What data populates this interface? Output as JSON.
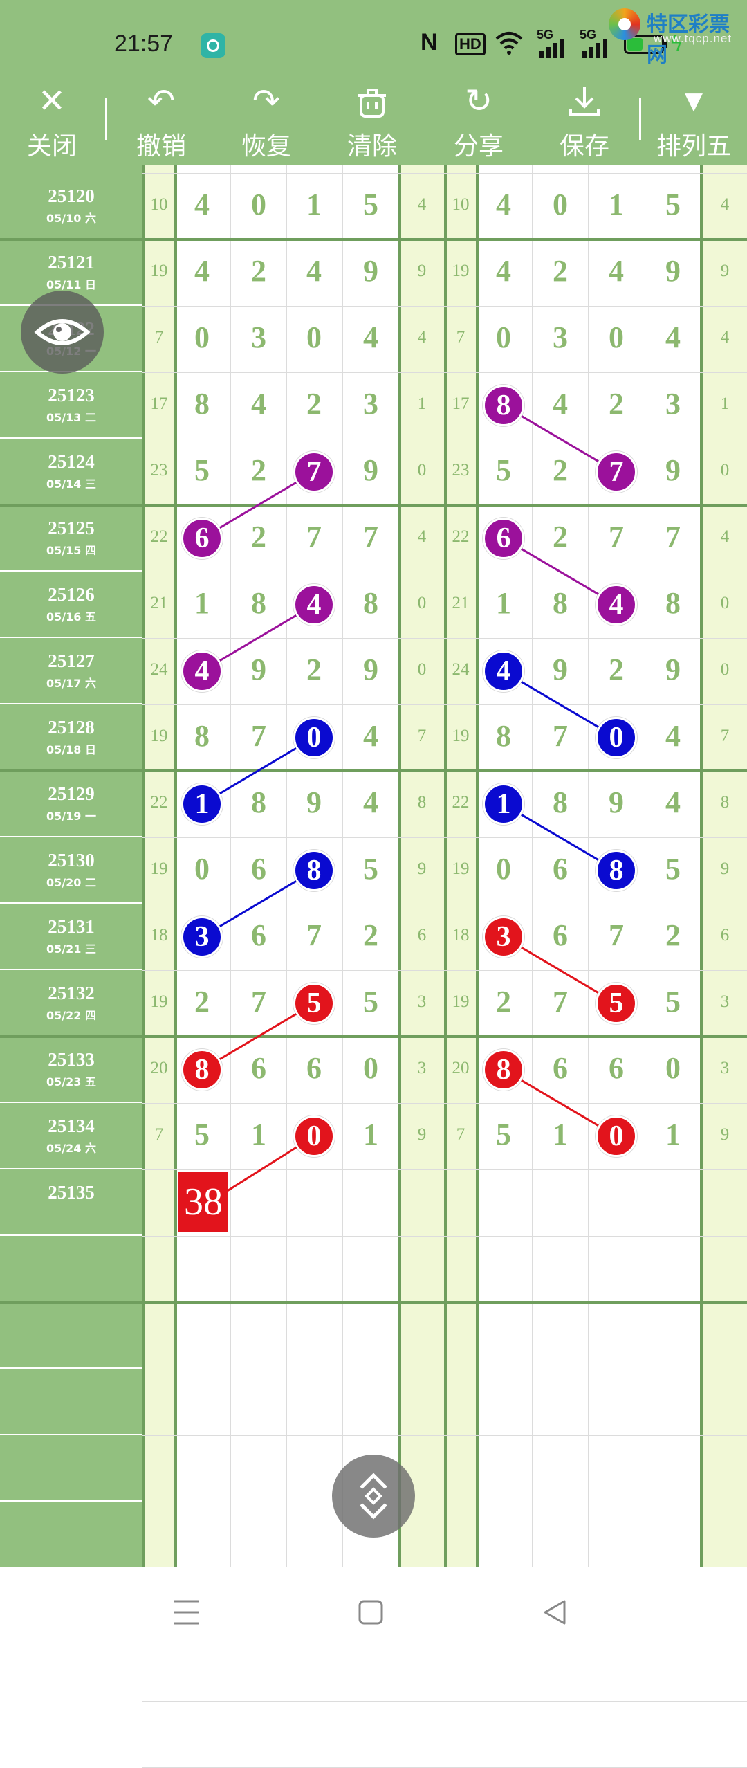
{
  "status_bar": {
    "time": "21:57",
    "icons": [
      "nfc-icon",
      "hd-icon",
      "wifi-icon",
      "signal-5g-icon",
      "signal-5g-icon",
      "battery-icon",
      "charging-icon"
    ],
    "hd_label": "HD",
    "net1_label": "5G",
    "net2_label": "5G"
  },
  "watermark": {
    "text": "特区彩票网",
    "url": "www.tqcp.net"
  },
  "toolbar": {
    "close": "关闭",
    "undo": "撤销",
    "redo": "恢复",
    "clear": "清除",
    "share": "分享",
    "save": "保存",
    "sort": "排列五"
  },
  "rows": [
    {
      "issue": "25120",
      "date": "05/10 六",
      "sum": "10",
      "digits": [
        "4",
        "0",
        "1",
        "5"
      ],
      "tail": "4"
    },
    {
      "issue": "25121",
      "date": "05/11 日",
      "sum": "19",
      "digits": [
        "4",
        "2",
        "4",
        "9"
      ],
      "tail": "9"
    },
    {
      "issue": "25122",
      "date": "05/12 一",
      "sum": "7",
      "digits": [
        "0",
        "3",
        "0",
        "4"
      ],
      "tail": "4"
    },
    {
      "issue": "25123",
      "date": "05/13 二",
      "sum": "17",
      "digits": [
        "8",
        "4",
        "2",
        "3"
      ],
      "tail": "1"
    },
    {
      "issue": "25124",
      "date": "05/14 三",
      "sum": "23",
      "digits": [
        "5",
        "2",
        "7",
        "9"
      ],
      "tail": "0"
    },
    {
      "issue": "25125",
      "date": "05/15 四",
      "sum": "22",
      "digits": [
        "6",
        "2",
        "7",
        "7"
      ],
      "tail": "4"
    },
    {
      "issue": "25126",
      "date": "05/16 五",
      "sum": "21",
      "digits": [
        "1",
        "8",
        "4",
        "8"
      ],
      "tail": "0"
    },
    {
      "issue": "25127",
      "date": "05/17 六",
      "sum": "24",
      "digits": [
        "4",
        "9",
        "2",
        "9"
      ],
      "tail": "0"
    },
    {
      "issue": "25128",
      "date": "05/18 日",
      "sum": "19",
      "digits": [
        "8",
        "7",
        "0",
        "4"
      ],
      "tail": "7"
    },
    {
      "issue": "25129",
      "date": "05/19 一",
      "sum": "22",
      "digits": [
        "1",
        "8",
        "9",
        "4"
      ],
      "tail": "8"
    },
    {
      "issue": "25130",
      "date": "05/20 二",
      "sum": "19",
      "digits": [
        "0",
        "6",
        "8",
        "5"
      ],
      "tail": "9"
    },
    {
      "issue": "25131",
      "date": "05/21 三",
      "sum": "18",
      "digits": [
        "3",
        "6",
        "7",
        "2"
      ],
      "tail": "6"
    },
    {
      "issue": "25132",
      "date": "05/22 四",
      "sum": "19",
      "digits": [
        "2",
        "7",
        "5",
        "5"
      ],
      "tail": "3"
    },
    {
      "issue": "25133",
      "date": "05/23 五",
      "sum": "20",
      "digits": [
        "8",
        "6",
        "6",
        "0"
      ],
      "tail": "3"
    },
    {
      "issue": "25134",
      "date": "05/24 六",
      "sum": "7",
      "digits": [
        "5",
        "1",
        "0",
        "1"
      ],
      "tail": "9"
    },
    {
      "issue": "25135",
      "date": "",
      "sum": "",
      "digits": [
        "",
        "",
        "",
        ""
      ],
      "tail": ""
    }
  ],
  "marks_left": [
    {
      "row": 4,
      "col": 2,
      "color": "#9b119b"
    },
    {
      "row": 5,
      "col": 0,
      "color": "#9b119b"
    },
    {
      "row": 6,
      "col": 2,
      "color": "#9b119b"
    },
    {
      "row": 7,
      "col": 0,
      "color": "#9b119b"
    },
    {
      "row": 8,
      "col": 2,
      "color": "#0a0ad0"
    },
    {
      "row": 9,
      "col": 0,
      "color": "#0a0ad0"
    },
    {
      "row": 10,
      "col": 2,
      "color": "#0a0ad0"
    },
    {
      "row": 11,
      "col": 0,
      "color": "#0a0ad0"
    },
    {
      "row": 12,
      "col": 2,
      "color": "#e2141c"
    },
    {
      "row": 13,
      "col": 0,
      "color": "#e2141c"
    },
    {
      "row": 14,
      "col": 2,
      "color": "#e2141c"
    }
  ],
  "marks_right": [
    {
      "row": 3,
      "col": 0,
      "color": "#9b119b"
    },
    {
      "row": 4,
      "col": 2,
      "color": "#9b119b"
    },
    {
      "row": 5,
      "col": 0,
      "color": "#9b119b"
    },
    {
      "row": 6,
      "col": 2,
      "color": "#9b119b"
    },
    {
      "row": 7,
      "col": 0,
      "color": "#0a0ad0"
    },
    {
      "row": 8,
      "col": 2,
      "color": "#0a0ad0"
    },
    {
      "row": 9,
      "col": 0,
      "color": "#0a0ad0"
    },
    {
      "row": 10,
      "col": 2,
      "color": "#0a0ad0"
    },
    {
      "row": 11,
      "col": 0,
      "color": "#e2141c"
    },
    {
      "row": 12,
      "col": 2,
      "color": "#e2141c"
    },
    {
      "row": 13,
      "col": 0,
      "color": "#e2141c"
    },
    {
      "row": 14,
      "col": 2,
      "color": "#e2141c"
    }
  ],
  "lines_left": [
    [
      4,
      2,
      5,
      0,
      "#9b119b"
    ],
    [
      6,
      2,
      7,
      0,
      "#9b119b"
    ],
    [
      8,
      2,
      9,
      0,
      "#0a0ad0"
    ],
    [
      10,
      2,
      11,
      0,
      "#0a0ad0"
    ],
    [
      12,
      2,
      13,
      0,
      "#e2141c"
    ],
    [
      14,
      2,
      15,
      0,
      "#e2141c"
    ]
  ],
  "lines_right": [
    [
      3,
      0,
      4,
      2,
      "#9b119b"
    ],
    [
      5,
      0,
      6,
      2,
      "#9b119b"
    ],
    [
      7,
      0,
      8,
      2,
      "#0a0ad0"
    ],
    [
      9,
      0,
      10,
      2,
      "#0a0ad0"
    ],
    [
      11,
      0,
      12,
      2,
      "#e2141c"
    ],
    [
      13,
      0,
      14,
      2,
      "#e2141c"
    ]
  ],
  "prediction": "38",
  "floating": {
    "eye": "eye-icon",
    "scroll": "scroll-updown-icon"
  },
  "navbar": {
    "icons": [
      "menu-icon",
      "home-icon",
      "back-icon"
    ]
  }
}
